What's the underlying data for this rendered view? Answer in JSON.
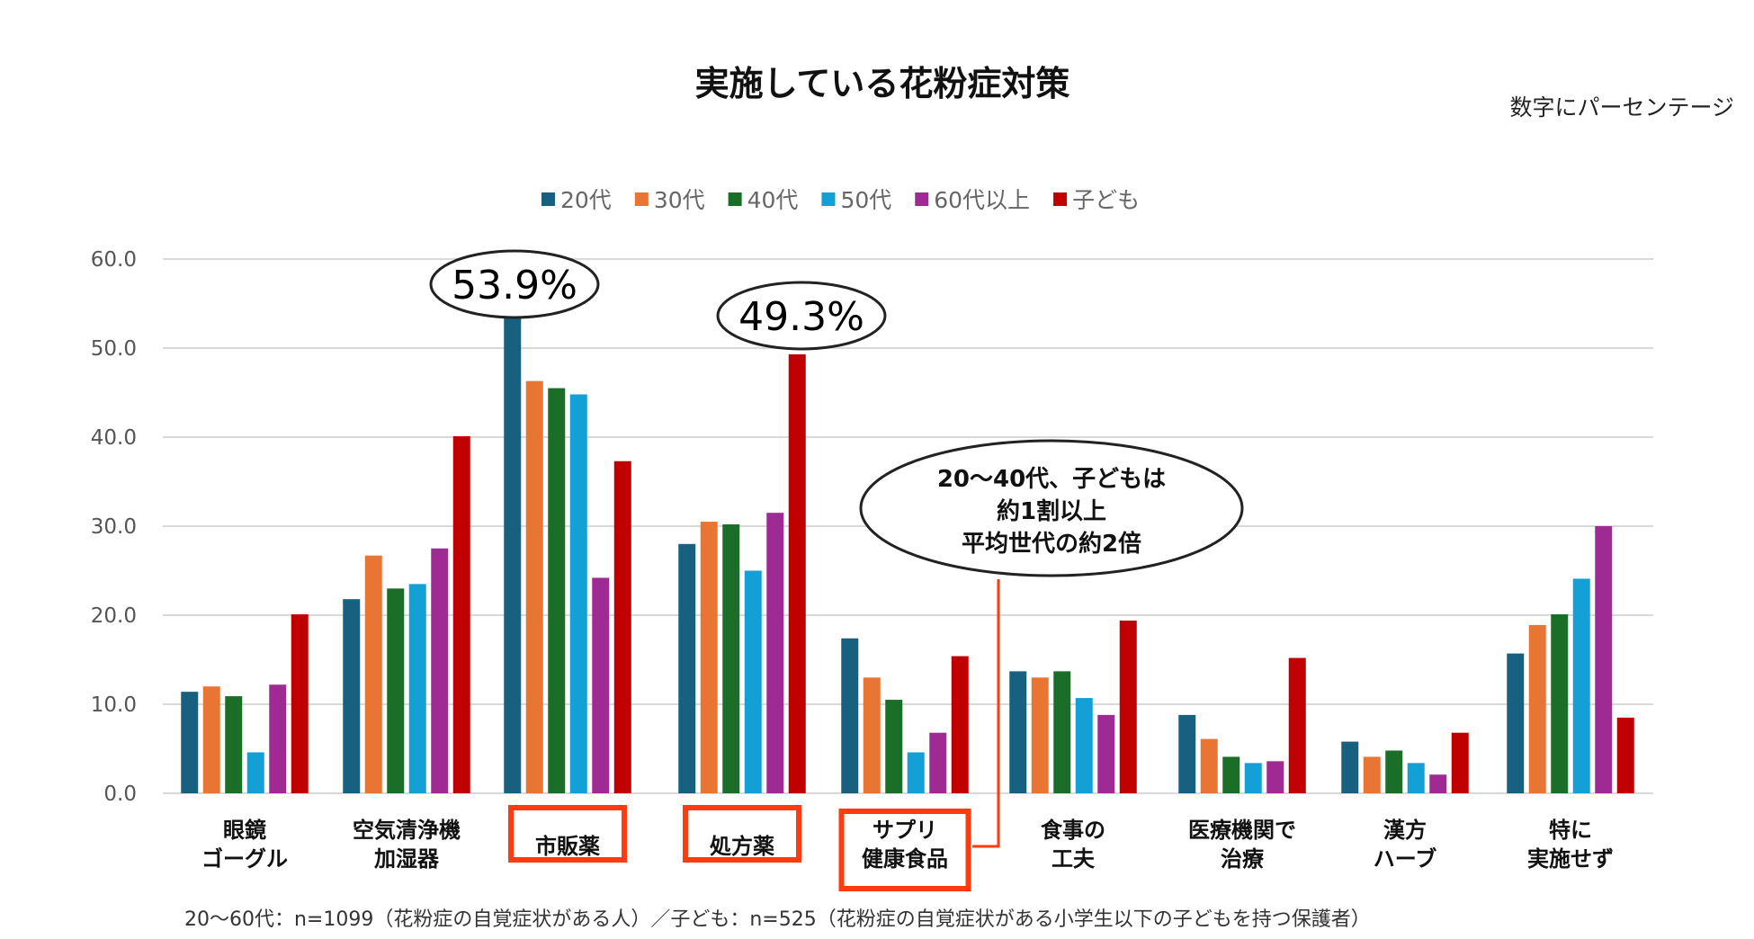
{
  "chart_data": {
    "type": "bar",
    "title": "実施している花粉症対策",
    "unit_note": "数字にパーセンテージ",
    "ylim": [
      0,
      60
    ],
    "yticks": [
      "0.0",
      "10.0",
      "20.0",
      "30.0",
      "40.0",
      "50.0",
      "60.0"
    ],
    "grid": true,
    "legend_position": "top",
    "categories": [
      [
        "眼鏡",
        "ゴーグル"
      ],
      [
        "空気清浄機",
        "加湿器"
      ],
      [
        "市販薬"
      ],
      [
        "処方薬"
      ],
      [
        "サプリ",
        "健康食品"
      ],
      [
        "食事の",
        "工夫"
      ],
      [
        "医療機関で",
        "治療"
      ],
      [
        "漢方",
        "ハーブ"
      ],
      [
        "特に",
        "実施せず"
      ]
    ],
    "highlighted_categories": [
      2,
      3,
      4
    ],
    "series": [
      {
        "name": "20代",
        "color": "#17607f",
        "values": [
          11.4,
          21.8,
          53.9,
          28.0,
          17.4,
          13.7,
          8.8,
          5.8,
          15.7
        ]
      },
      {
        "name": "30代",
        "color": "#e97534",
        "values": [
          12.0,
          26.7,
          46.3,
          30.5,
          13.0,
          13.0,
          6.1,
          4.1,
          18.9
        ]
      },
      {
        "name": "40代",
        "color": "#1a6e27",
        "values": [
          10.9,
          23.0,
          45.5,
          30.2,
          10.5,
          13.7,
          4.1,
          4.8,
          20.1
        ]
      },
      {
        "name": "50代",
        "color": "#12a0d6",
        "values": [
          4.6,
          23.5,
          44.8,
          25.0,
          4.6,
          10.7,
          3.4,
          3.4,
          24.1
        ]
      },
      {
        "name": "60代以上",
        "color": "#a02a94",
        "values": [
          12.2,
          27.5,
          24.2,
          31.5,
          6.8,
          8.8,
          3.6,
          2.1,
          30.0
        ]
      },
      {
        "name": "子ども",
        "color": "#c00000",
        "values": [
          20.1,
          40.1,
          37.3,
          49.3,
          15.4,
          19.4,
          15.2,
          6.8,
          8.5
        ]
      }
    ],
    "annotations": [
      {
        "text": "53.9%"
      },
      {
        "text": "49.3%"
      },
      {
        "lines": [
          "20〜40代、子どもは",
          "約1割以上",
          "平均世代の約2倍"
        ]
      }
    ],
    "footnote": "20〜60代：n=1099（花粉症の自覚症状がある人）／子ども：n=525（花粉症の自覚症状がある小学生以下の子どもを持つ保護者）",
    "highlight_color": "#ff3b0f"
  }
}
